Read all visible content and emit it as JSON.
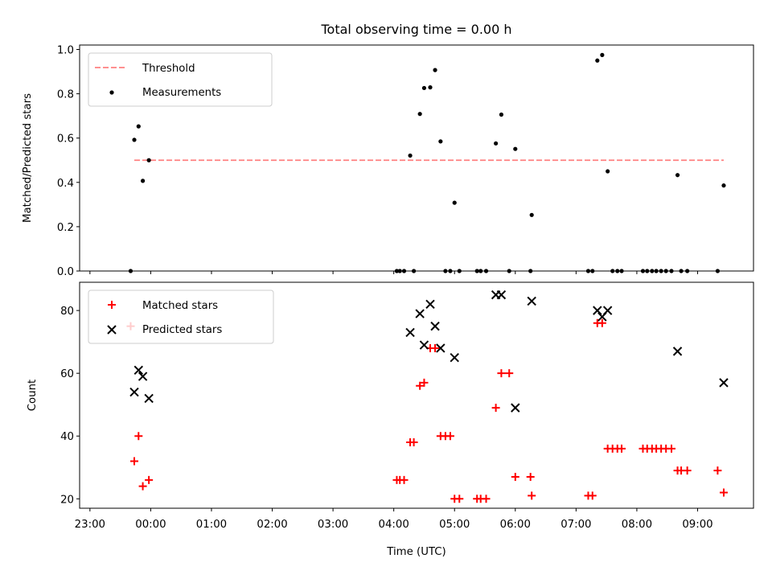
{
  "title": "Total observing time = 0.00 h",
  "chart_data": [
    {
      "type": "scatter",
      "panel": "top",
      "ylabel": "Matched/Predicted stars",
      "xlabel": "",
      "ylim": [
        0,
        1.02
      ],
      "yticks": [
        "0.0",
        "0.2",
        "0.4",
        "0.6",
        "0.8",
        "1.0"
      ],
      "legend_position": "upper-left",
      "threshold": {
        "name": "Threshold",
        "value": 0.5,
        "x_range": [
          -0.27,
          9.43
        ],
        "color": "#ff8080",
        "style": "dashed"
      },
      "series": [
        {
          "name": "Measurements",
          "color": "#000000",
          "marker": "dot",
          "x": [
            -0.33,
            -0.27,
            -0.2,
            -0.13,
            -0.03,
            4.05,
            4.1,
            4.17,
            4.27,
            4.33,
            4.43,
            4.5,
            4.6,
            4.68,
            4.77,
            4.85,
            4.93,
            5.0,
            5.08,
            5.37,
            5.43,
            5.52,
            5.68,
            5.77,
            5.9,
            6.0,
            6.25,
            6.27,
            7.2,
            7.27,
            7.35,
            7.43,
            7.52,
            7.6,
            7.68,
            7.75,
            8.1,
            8.17,
            8.25,
            8.32,
            8.4,
            8.48,
            8.57,
            8.67,
            8.73,
            8.83,
            9.33,
            9.43
          ],
          "y": [
            0.0,
            0.592,
            0.653,
            0.407,
            0.5,
            0.0,
            0.0,
            0.0,
            0.521,
            0.0,
            0.709,
            0.826,
            0.829,
            0.907,
            0.585,
            0.0,
            0.0,
            0.308,
            0.0,
            0.0,
            0.0,
            0.0,
            0.576,
            0.706,
            0.0,
            0.551,
            0.0,
            0.253,
            0.0,
            0.0,
            0.95,
            0.975,
            0.45,
            0.0,
            0.0,
            0.0,
            0.0,
            0.0,
            0.0,
            0.0,
            0.0,
            0.0,
            0.0,
            0.433,
            0.0,
            0.0,
            0.0,
            0.386
          ]
        }
      ]
    },
    {
      "type": "scatter",
      "panel": "bottom",
      "xlabel": "Time (UTC)",
      "ylabel": "Count",
      "ylim": [
        17,
        89
      ],
      "yticks": [
        "20",
        "40",
        "60",
        "80"
      ],
      "xticks": [
        "23:00",
        "00:00",
        "01:00",
        "02:00",
        "03:00",
        "04:00",
        "05:00",
        "06:00",
        "07:00",
        "08:00",
        "09:00"
      ],
      "xlim": [
        -1.17,
        9.92
      ],
      "legend_position": "upper-left",
      "series": [
        {
          "name": "Matched stars",
          "color": "#ff0000",
          "marker": "plus",
          "x": [
            -0.33,
            -0.27,
            -0.2,
            -0.13,
            -0.03,
            4.05,
            4.1,
            4.17,
            4.27,
            4.33,
            4.43,
            4.5,
            4.6,
            4.68,
            4.77,
            4.85,
            4.93,
            5.0,
            5.08,
            5.37,
            5.43,
            5.52,
            5.68,
            5.77,
            5.9,
            6.0,
            6.25,
            6.27,
            7.2,
            7.27,
            7.35,
            7.43,
            7.52,
            7.6,
            7.68,
            7.75,
            8.1,
            8.17,
            8.25,
            8.32,
            8.4,
            8.48,
            8.57,
            8.67,
            8.73,
            8.83,
            9.33,
            9.43
          ],
          "y": [
            75,
            32,
            40,
            24,
            26,
            26,
            26,
            26,
            38,
            38,
            56,
            57,
            68,
            68,
            40,
            40,
            40,
            20,
            20,
            20,
            20,
            20,
            49,
            60,
            60,
            27,
            27,
            21,
            21,
            21,
            76,
            76,
            36,
            36,
            36,
            36,
            36,
            36,
            36,
            36,
            36,
            36,
            36,
            29,
            29,
            29,
            29,
            22
          ]
        },
        {
          "name": "Predicted stars",
          "color": "#000000",
          "marker": "x",
          "x": [
            -0.27,
            -0.2,
            -0.13,
            -0.03,
            4.27,
            4.43,
            4.5,
            4.6,
            4.68,
            4.77,
            5.0,
            5.68,
            5.77,
            6.0,
            6.27,
            7.35,
            7.43,
            7.52,
            8.67,
            9.43
          ],
          "y": [
            54,
            61,
            59,
            52,
            73,
            79,
            69,
            82,
            75,
            68,
            65,
            85,
            85,
            49,
            83,
            80,
            78,
            80,
            67,
            57
          ]
        }
      ]
    }
  ]
}
